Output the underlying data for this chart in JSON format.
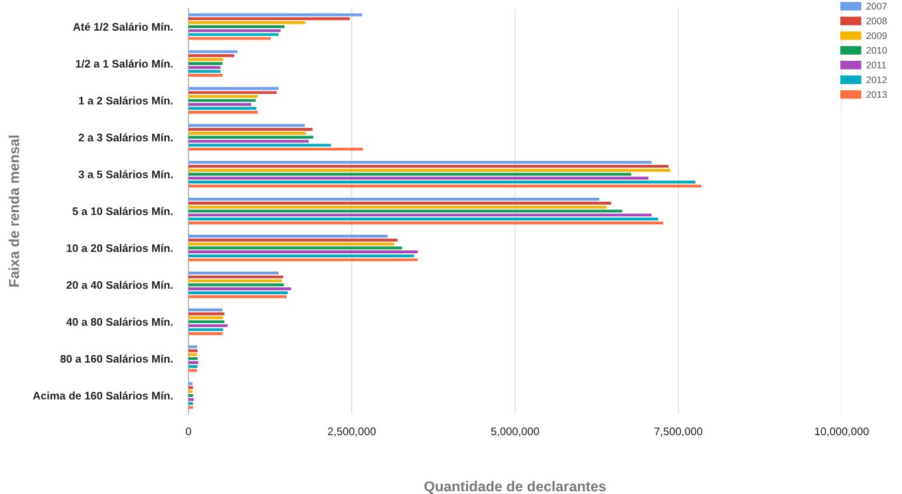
{
  "chart_data": {
    "type": "bar",
    "orientation": "horizontal",
    "xlabel": "Quantidade de declarantes",
    "ylabel": "Faixa de renda mensal",
    "categories": [
      "Até 1/2 Salário Mín.",
      "1/2 a 1 Salário Mín.",
      "1 a 2 Salários Mín.",
      "2 a 3 Salários Mín.",
      "3 a 5 Salários Mín.",
      "5 a 10 Salários Mín.",
      "10 a 20 Salários Mín.",
      "20 a 40 Salários Mín.",
      "40 a 80 Salários Mín.",
      "80 a 160 Salários Mín.",
      "Acima de 160 Salários Mín."
    ],
    "series": [
      {
        "name": "2007",
        "color": "#6d9eeb",
        "values": [
          2660000,
          750000,
          1380000,
          1780000,
          7090000,
          6290000,
          3050000,
          1380000,
          520000,
          130000,
          60000
        ]
      },
      {
        "name": "2008",
        "color": "#db4437",
        "values": [
          2470000,
          700000,
          1350000,
          1900000,
          7350000,
          6470000,
          3200000,
          1450000,
          550000,
          140000,
          70000
        ]
      },
      {
        "name": "2009",
        "color": "#f4b400",
        "values": [
          1790000,
          530000,
          1060000,
          1800000,
          7380000,
          6400000,
          3150000,
          1430000,
          530000,
          130000,
          60000
        ]
      },
      {
        "name": "2010",
        "color": "#0f9d58",
        "values": [
          1470000,
          520000,
          1030000,
          1910000,
          6780000,
          6640000,
          3270000,
          1460000,
          550000,
          140000,
          70000
        ]
      },
      {
        "name": "2011",
        "color": "#ab47bc",
        "values": [
          1410000,
          490000,
          960000,
          1840000,
          7040000,
          7090000,
          3510000,
          1570000,
          600000,
          150000,
          80000
        ]
      },
      {
        "name": "2012",
        "color": "#00acc1",
        "values": [
          1380000,
          490000,
          1040000,
          2180000,
          7760000,
          7190000,
          3450000,
          1520000,
          530000,
          140000,
          70000
        ]
      },
      {
        "name": "2013",
        "color": "#ff7043",
        "values": [
          1260000,
          520000,
          1060000,
          2670000,
          7850000,
          7270000,
          3510000,
          1500000,
          520000,
          130000,
          70000
        ]
      }
    ],
    "xlim": [
      0,
      10000000
    ],
    "xticks": [
      0,
      {
        "value": 2500000,
        "label": "2,500,000"
      },
      {
        "value": 5000000,
        "label": "5,000,000"
      },
      {
        "value": 7500000,
        "label": "7,500,000"
      },
      {
        "value": 10000000,
        "label": "10,000,000"
      }
    ],
    "grid": "x",
    "legend": "top right"
  }
}
